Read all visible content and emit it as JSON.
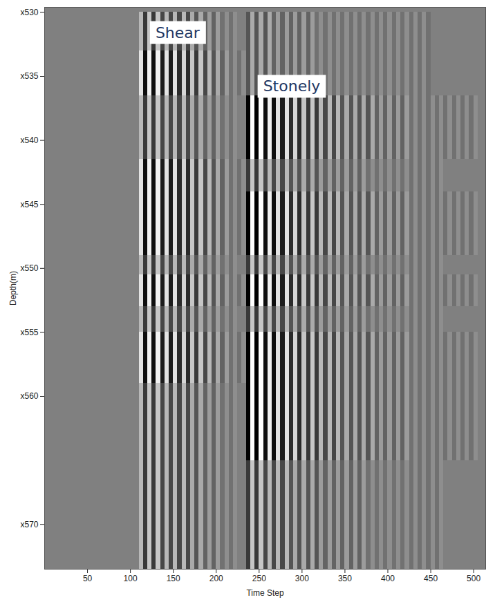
{
  "chart_data": {
    "type": "heatmap",
    "x_label": "Time Step",
    "y_label": "Depth(m)",
    "xlim": [
      0,
      514
    ],
    "xticks": [
      50,
      100,
      150,
      200,
      250,
      300,
      350,
      400,
      450,
      500
    ],
    "ylim": [
      529.6,
      573.5
    ],
    "yticks": [
      {
        "value": 530,
        "label": "x530"
      },
      {
        "value": 535,
        "label": "x535"
      },
      {
        "value": 540,
        "label": "x540"
      },
      {
        "value": 545,
        "label": "x545"
      },
      {
        "value": 550,
        "label": "x550"
      },
      {
        "value": 555,
        "label": "x555"
      },
      {
        "value": 560,
        "label": "x560"
      },
      {
        "value": 570,
        "label": "x570"
      }
    ],
    "color_range": [
      -9,
      9
    ],
    "annotations": [
      {
        "text": "Shear",
        "x": 155,
        "y": 531.6
      },
      {
        "text": "Stonely",
        "x": 288,
        "y": 535.8
      }
    ],
    "cells": {
      "time_bins": [
        105,
        110,
        115,
        120,
        125,
        130,
        135,
        140,
        145,
        150,
        155,
        160,
        165,
        170,
        175,
        180,
        185,
        190,
        195,
        200,
        205,
        210,
        215,
        220,
        225,
        230,
        235,
        240,
        245,
        250,
        255,
        260,
        265,
        270,
        275,
        280,
        285,
        290,
        295,
        300,
        305,
        310,
        315,
        320,
        325,
        330,
        335,
        340,
        345,
        350,
        355,
        360,
        365,
        370,
        375,
        380,
        385,
        390,
        395,
        400,
        405,
        410,
        415,
        420,
        425,
        430,
        435,
        440,
        445,
        450,
        455,
        460,
        465,
        470,
        475,
        480,
        485,
        490,
        495,
        500,
        505
      ],
      "depth_bins": [
        530,
        533,
        536.5,
        541.5,
        544,
        549,
        550.5,
        553,
        555,
        559,
        565,
        573.5
      ],
      "values": [
        [
          0,
          4,
          -5,
          5,
          -5,
          5,
          -4,
          4,
          -4,
          4,
          -4,
          4,
          -4,
          3,
          -3,
          3,
          -2,
          2,
          -2,
          2,
          -1,
          1,
          -1,
          1,
          0,
          0,
          -3,
          3,
          -3,
          3,
          -3,
          3,
          -2,
          2,
          -2,
          2,
          -2,
          2,
          -2,
          2,
          -2,
          2,
          -1,
          1,
          -1,
          1,
          -1,
          1,
          -1,
          1,
          -1,
          1,
          -1,
          1,
          -1,
          1,
          -1,
          1,
          -1,
          1,
          -1,
          1,
          -1,
          1,
          -1,
          1,
          -1,
          1,
          -1,
          0,
          0,
          0,
          0,
          0,
          0,
          0,
          0,
          0,
          0,
          0
        ],
        [
          0,
          7,
          -8,
          8,
          -8,
          8,
          -7,
          7,
          -7,
          7,
          -6,
          6,
          -6,
          5,
          -5,
          5,
          -4,
          4,
          -3,
          3,
          -2,
          2,
          -1,
          1,
          -1,
          1,
          -3,
          3,
          -3,
          3,
          -3,
          3,
          -2,
          2,
          -2,
          2,
          -2,
          2,
          -2,
          2,
          -2,
          2,
          -1,
          1,
          -1,
          1,
          -1,
          1,
          -1,
          1,
          -1,
          1,
          -1,
          1,
          -1,
          1,
          -1,
          1,
          -1,
          1,
          -1,
          1,
          -1,
          1,
          -1,
          1,
          -1,
          1,
          -1,
          0,
          0,
          0,
          0,
          0,
          0,
          0,
          0,
          0,
          0,
          0
        ],
        [
          0,
          4,
          -5,
          5,
          -5,
          5,
          -4,
          4,
          -4,
          4,
          -4,
          4,
          -4,
          3,
          -3,
          3,
          -2,
          2,
          -2,
          2,
          -1,
          1,
          -1,
          1,
          0,
          0,
          -9,
          9,
          -9,
          9,
          -8,
          8,
          -8,
          7,
          -7,
          7,
          -6,
          6,
          -6,
          5,
          -5,
          5,
          -5,
          4,
          -4,
          4,
          -4,
          4,
          -3,
          3,
          -3,
          3,
          -3,
          3,
          -3,
          3,
          -2,
          2,
          -2,
          2,
          -2,
          2,
          -2,
          2,
          -1,
          1,
          -1,
          1,
          -1,
          1,
          -1,
          1,
          -1,
          1,
          -1,
          1,
          -1,
          1,
          -1,
          1
        ],
        [
          0,
          7,
          -8,
          8,
          -8,
          8,
          -7,
          7,
          -7,
          7,
          -6,
          6,
          -6,
          5,
          -5,
          5,
          -4,
          4,
          -3,
          3,
          -2,
          2,
          -1,
          1,
          -1,
          1,
          -5,
          5,
          -5,
          5,
          -4,
          4,
          -4,
          4,
          -4,
          4,
          -3,
          3,
          -3,
          3,
          -3,
          3,
          -3,
          2,
          -2,
          2,
          -2,
          2,
          -2,
          2,
          -2,
          2,
          -2,
          2,
          -1,
          1,
          -1,
          1,
          -1,
          1,
          -1,
          1,
          -1,
          1,
          -1,
          1,
          -1,
          1,
          -1,
          1,
          -1,
          1,
          0,
          0,
          0,
          0,
          0,
          0,
          0,
          0
        ],
        [
          0,
          7,
          -8,
          8,
          -8,
          8,
          -7,
          7,
          -7,
          7,
          -6,
          6,
          -6,
          5,
          -5,
          5,
          -4,
          4,
          -3,
          3,
          -2,
          2,
          -1,
          1,
          -1,
          1,
          -9,
          9,
          -9,
          9,
          -8,
          8,
          -8,
          7,
          -7,
          7,
          -6,
          6,
          -6,
          5,
          -5,
          5,
          -5,
          4,
          -4,
          4,
          -4,
          4,
          -3,
          3,
          -3,
          3,
          -3,
          3,
          -3,
          3,
          -2,
          2,
          -2,
          2,
          -2,
          2,
          -2,
          2,
          -1,
          1,
          -1,
          1,
          -1,
          1,
          -1,
          1,
          -1,
          1,
          -1,
          1,
          -1,
          1,
          -1,
          1
        ],
        [
          0,
          4,
          -5,
          5,
          -5,
          5,
          -4,
          4,
          -4,
          4,
          -4,
          4,
          -4,
          3,
          -3,
          3,
          -2,
          2,
          -2,
          2,
          -1,
          1,
          -1,
          1,
          0,
          0,
          -5,
          5,
          -5,
          5,
          -4,
          4,
          -4,
          4,
          -4,
          4,
          -3,
          3,
          -3,
          3,
          -3,
          3,
          -3,
          2,
          -2,
          2,
          -2,
          2,
          -2,
          2,
          -2,
          2,
          -2,
          2,
          -1,
          1,
          -1,
          1,
          -1,
          1,
          -1,
          1,
          -1,
          1,
          -1,
          1,
          -1,
          1,
          -1,
          1,
          -1,
          1,
          0,
          0,
          0,
          0,
          0,
          0,
          0,
          0
        ],
        [
          0,
          7,
          -8,
          8,
          -8,
          8,
          -7,
          7,
          -7,
          7,
          -6,
          6,
          -6,
          5,
          -5,
          5,
          -4,
          4,
          -3,
          3,
          -2,
          2,
          -1,
          1,
          -1,
          1,
          -9,
          9,
          -9,
          9,
          -8,
          8,
          -8,
          7,
          -7,
          7,
          -6,
          6,
          -6,
          5,
          -5,
          5,
          -5,
          4,
          -4,
          4,
          -4,
          4,
          -3,
          3,
          -3,
          3,
          -3,
          3,
          -3,
          3,
          -2,
          2,
          -2,
          2,
          -2,
          2,
          -2,
          2,
          -1,
          1,
          -1,
          1,
          -1,
          1,
          -1,
          1,
          -1,
          1,
          -1,
          1,
          -1,
          1,
          -1,
          1
        ],
        [
          0,
          4,
          -5,
          5,
          -5,
          5,
          -4,
          4,
          -4,
          4,
          -4,
          4,
          -4,
          3,
          -3,
          3,
          -2,
          2,
          -2,
          2,
          -1,
          1,
          -1,
          1,
          0,
          0,
          -5,
          5,
          -5,
          5,
          -4,
          4,
          -4,
          4,
          -4,
          4,
          -3,
          3,
          -3,
          3,
          -3,
          3,
          -3,
          2,
          -2,
          2,
          -2,
          2,
          -2,
          2,
          -2,
          2,
          -2,
          2,
          -1,
          1,
          -1,
          1,
          -1,
          1,
          -1,
          1,
          -1,
          1,
          -1,
          1,
          -1,
          1,
          -1,
          1,
          -1,
          1,
          0,
          0,
          0,
          0,
          0,
          0,
          0,
          0
        ],
        [
          0,
          7,
          -8,
          8,
          -8,
          8,
          -7,
          7,
          -7,
          7,
          -6,
          6,
          -6,
          5,
          -5,
          5,
          -4,
          4,
          -3,
          3,
          -2,
          2,
          -1,
          1,
          -1,
          1,
          -9,
          9,
          -9,
          9,
          -8,
          8,
          -8,
          7,
          -7,
          7,
          -6,
          6,
          -6,
          5,
          -5,
          5,
          -5,
          4,
          -4,
          4,
          -4,
          4,
          -3,
          3,
          -3,
          3,
          -3,
          3,
          -3,
          3,
          -2,
          2,
          -2,
          2,
          -2,
          2,
          -2,
          2,
          -1,
          1,
          -1,
          1,
          -1,
          1,
          -1,
          1,
          -1,
          1,
          -1,
          1,
          -1,
          1,
          -1,
          1
        ],
        [
          0,
          4,
          -5,
          5,
          -5,
          5,
          -4,
          4,
          -4,
          4,
          -4,
          4,
          -4,
          3,
          -3,
          3,
          -2,
          2,
          -2,
          2,
          -1,
          1,
          -1,
          1,
          0,
          0,
          -9,
          9,
          -9,
          9,
          -8,
          8,
          -8,
          7,
          -7,
          7,
          -6,
          6,
          -6,
          5,
          -5,
          5,
          -5,
          4,
          -4,
          4,
          -4,
          4,
          -3,
          3,
          -3,
          3,
          -3,
          3,
          -3,
          3,
          -2,
          2,
          -2,
          2,
          -2,
          2,
          -2,
          2,
          -1,
          1,
          -1,
          1,
          -1,
          1,
          -1,
          1,
          -1,
          1,
          -1,
          1,
          -1,
          1,
          -1,
          1
        ],
        [
          0,
          4,
          -5,
          5,
          -5,
          5,
          -4,
          4,
          -4,
          4,
          -4,
          4,
          -4,
          3,
          -3,
          3,
          -2,
          2,
          -2,
          2,
          -1,
          1,
          -1,
          1,
          0,
          0,
          -5,
          5,
          -5,
          5,
          -4,
          4,
          -4,
          4,
          -4,
          4,
          -3,
          3,
          -3,
          3,
          -3,
          3,
          -3,
          2,
          -2,
          2,
          -2,
          2,
          -2,
          2,
          -2,
          2,
          -2,
          2,
          -1,
          1,
          -1,
          1,
          -1,
          1,
          -1,
          1,
          -1,
          1,
          -1,
          1,
          -1,
          1,
          -1,
          1,
          -1,
          1,
          0,
          0,
          0,
          0,
          0,
          0,
          0,
          0
        ]
      ]
    }
  }
}
